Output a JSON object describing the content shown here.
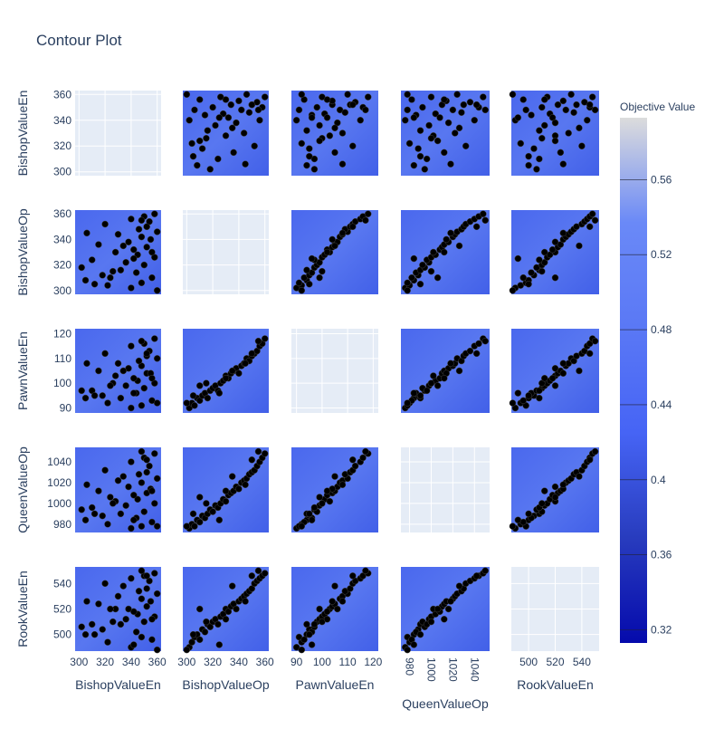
{
  "chart_data": {
    "type": "contour",
    "title": "Contour Plot",
    "params": [
      {
        "name": "BishopValueEn",
        "lim": [
          297,
          363
        ],
        "ticks": [
          300,
          320,
          340,
          360
        ],
        "values": [
          340,
          322,
          348,
          305,
          356,
          318,
          344,
          332,
          302,
          350,
          336,
          310,
          358,
          345,
          328,
          342,
          352,
          315,
          338,
          355,
          348,
          330,
          360,
          346,
          352,
          320,
          354,
          340,
          350,
          358,
          312,
          326,
          342,
          334,
          306,
          348,
          360,
          324,
          356,
          352
        ]
      },
      {
        "name": "BishopValueOp",
        "lim": [
          297,
          363
        ],
        "ticks": [
          300,
          320,
          340,
          360
        ],
        "values": [
          302,
          304,
          306,
          308,
          310,
          312,
          314,
          316,
          318,
          320,
          322,
          324,
          326,
          328,
          330,
          332,
          334,
          336,
          338,
          340,
          342,
          344,
          346,
          348,
          350,
          352,
          354,
          356,
          358,
          360,
          305,
          315,
          325,
          335,
          345,
          355,
          300,
          310,
          330,
          350
        ]
      },
      {
        "name": "PawnValueEn",
        "lim": [
          88,
          122
        ],
        "ticks": [
          90,
          100,
          110,
          120
        ],
        "values": [
          90,
          92,
          91,
          94,
          93,
          95,
          96,
          94,
          97,
          98,
          99,
          97,
          100,
          101,
          103,
          102,
          104,
          105,
          106,
          104,
          107,
          108,
          110,
          109,
          111,
          112,
          113,
          115,
          116,
          118,
          95,
          100,
          96,
          105,
          108,
          117,
          92,
          99,
          102,
          112
        ]
      },
      {
        "name": "QueenValueOp",
        "lim": [
          972,
          1054
        ],
        "ticks": [
          980,
          1000,
          1020,
          1040
        ],
        "values": [
          976,
          980,
          978,
          984,
          982,
          988,
          986,
          990,
          994,
          992,
          998,
          996,
          1000,
          1004,
          1002,
          1008,
          1010,
          1012,
          1016,
          1014,
          1020,
          1022,
          1024,
          1028,
          1030,
          1032,
          1036,
          1040,
          1044,
          1048,
          990,
          1000,
          984,
          1026,
          1018,
          1050,
          978,
          1006,
          1012,
          1042
        ]
      },
      {
        "name": "RookValueEn",
        "lim": [
          487,
          553
        ],
        "ticks": [
          500,
          520,
          540
        ],
        "values": [
          490,
          494,
          498,
          500,
          496,
          504,
          502,
          508,
          506,
          510,
          512,
          508,
          514,
          516,
          520,
          518,
          522,
          524,
          520,
          526,
          528,
          530,
          532,
          534,
          536,
          540,
          542,
          544,
          546,
          548,
          500,
          510,
          492,
          538,
          526,
          550,
          488,
          520,
          512,
          546
        ]
      }
    ],
    "colorbar": {
      "title": "Objective Value",
      "lim": [
        0.313,
        0.593
      ],
      "ticks": [
        0.32,
        0.36,
        0.4,
        0.44,
        0.48,
        0.52,
        0.56
      ],
      "colors": [
        "#050aac",
        "#283cbe",
        "#4664f5",
        "#5a78f5",
        "#6a89f7",
        "#dcdcdc"
      ]
    },
    "point_color": "#000000"
  }
}
